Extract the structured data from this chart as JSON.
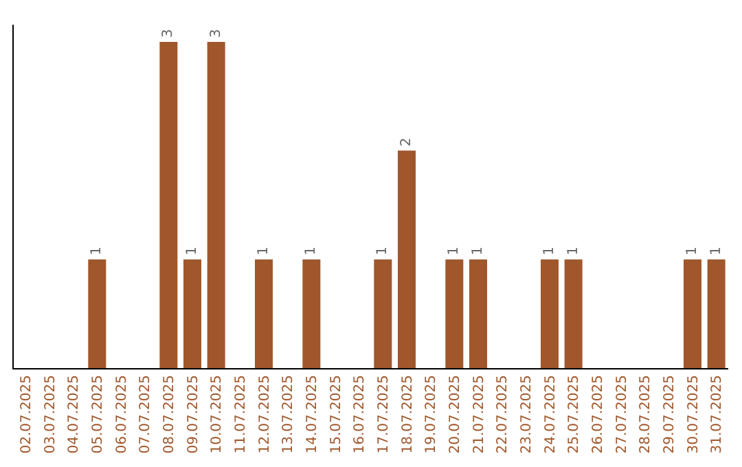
{
  "chart_data": {
    "type": "bar",
    "categories": [
      "02.07.2025",
      "03.07.2025",
      "04.07.2025",
      "05.07.2025",
      "06.07.2025",
      "07.07.2025",
      "08.07.2025",
      "09.07.2025",
      "10.07.2025",
      "11.07.2025",
      "12.07.2025",
      "13.07.2025",
      "14.07.2025",
      "15.07.2025",
      "16.07.2025",
      "17.07.2025",
      "18.07.2025",
      "19.07.2025",
      "20.07.2025",
      "21.07.2025",
      "22.07.2025",
      "23.07.2025",
      "24.07.2025",
      "25.07.2025",
      "26.07.2025",
      "27.07.2025",
      "28.07.2025",
      "29.07.2025",
      "30.07.2025",
      "31.07.2025"
    ],
    "values": [
      0,
      0,
      0,
      1,
      0,
      0,
      3,
      1,
      3,
      0,
      1,
      0,
      1,
      0,
      0,
      1,
      2,
      0,
      1,
      1,
      0,
      0,
      1,
      1,
      0,
      0,
      0,
      0,
      1,
      1
    ],
    "value_labels": [
      null,
      null,
      null,
      "1",
      null,
      null,
      "3",
      "1",
      "3",
      null,
      "1",
      null,
      "1",
      null,
      null,
      "1",
      "2",
      null,
      "1",
      "1",
      null,
      null,
      "1",
      "1",
      null,
      null,
      null,
      null,
      "1",
      "1"
    ],
    "color": "#a0572b",
    "grid": false,
    "tick_labels": "x",
    "legend": false
  }
}
